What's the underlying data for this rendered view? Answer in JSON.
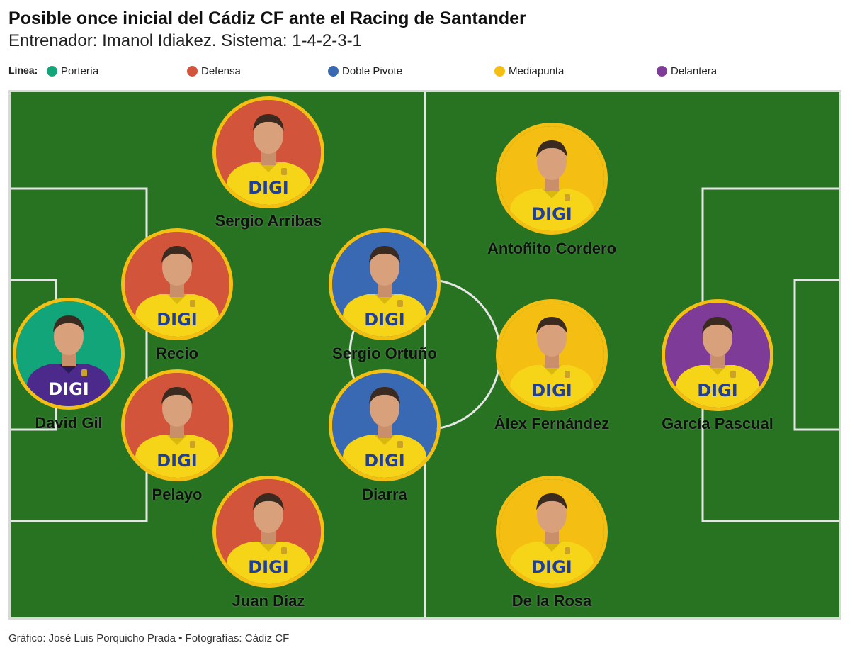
{
  "title": "Posible once inicial del Cádiz CF ante el Racing de Santander",
  "subtitle": "Entrenador: Imanol Idiakez. Sistema: 1-4-2-3-1",
  "legend": {
    "label": "Línea:",
    "items": [
      {
        "label": "Portería",
        "color": "#13a57a"
      },
      {
        "label": "Defensa",
        "color": "#d2553b"
      },
      {
        "label": "Doble Pivote",
        "color": "#3a69b3"
      },
      {
        "label": "Mediapunta",
        "color": "#f5be12"
      },
      {
        "label": "Delantera",
        "color": "#7e3c98"
      }
    ]
  },
  "pitch_color": "#277322",
  "ring_color": "#f5be12",
  "shirt_sponsor": "DIGI",
  "players": [
    {
      "name": "David Gil",
      "line": "Portería",
      "kit": "keeper"
    },
    {
      "name": "Sergio Arribas",
      "line": "Defensa",
      "kit": "outfield"
    },
    {
      "name": "Recio",
      "line": "Defensa",
      "kit": "outfield"
    },
    {
      "name": "Pelayo",
      "line": "Defensa",
      "kit": "outfield"
    },
    {
      "name": "Juan Díaz",
      "line": "Defensa",
      "kit": "outfield"
    },
    {
      "name": "Sergio Ortuño",
      "line": "Doble Pivote",
      "kit": "outfield"
    },
    {
      "name": "Diarra",
      "line": "Doble Pivote",
      "kit": "outfield"
    },
    {
      "name": "Antoñito Cordero",
      "line": "Mediapunta",
      "kit": "outfield"
    },
    {
      "name": "Álex Fernández",
      "line": "Mediapunta",
      "kit": "outfield"
    },
    {
      "name": "De la Rosa",
      "line": "Mediapunta",
      "kit": "outfield"
    },
    {
      "name": "García Pascual",
      "line": "Delantera",
      "kit": "outfield"
    }
  ],
  "footer": "Gráfico: José Luis Porquicho Prada • Fotografías: Cádiz CF"
}
